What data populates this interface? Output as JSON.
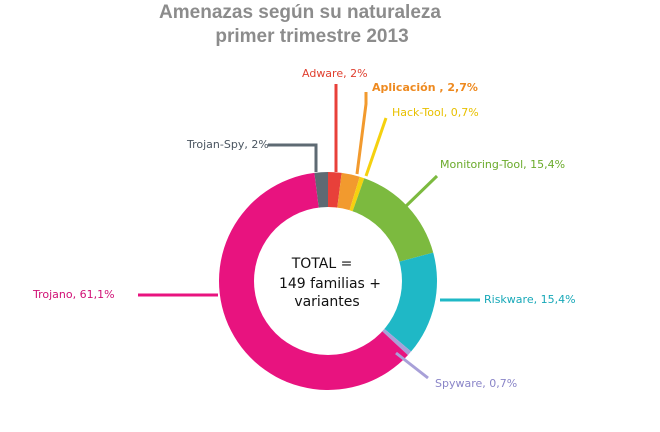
{
  "chart_data": {
    "type": "pie",
    "title": [
      "Amenazas según su naturaleza",
      "primer trimestre 2013"
    ],
    "center_text": [
      "TOTAL =",
      "149 familias +",
      "variantes"
    ],
    "slices": [
      {
        "label": "Adware, 2%",
        "value": 2.0,
        "color": "#e8403a",
        "label_color": "#e04030"
      },
      {
        "label": "Aplicación , 2,7%",
        "value": 2.7,
        "color": "#f29a2e",
        "label_color": "#ee8a20"
      },
      {
        "label": "Hack-Tool, 0,7%",
        "value": 0.7,
        "color": "#f5d10f",
        "label_color": "#e8c000"
      },
      {
        "label": "Monitoring-Tool, 15,4%",
        "value": 15.4,
        "color": "#7cba3f",
        "label_color": "#6aaa2a"
      },
      {
        "label": "Riskware, 15,4%",
        "value": 15.4,
        "color": "#1fb8c6",
        "label_color": "#17a8b8"
      },
      {
        "label": "Spyware, 0,7%",
        "value": 0.7,
        "color": "#a8a0d8",
        "label_color": "#8a85c8"
      },
      {
        "label": "Trojano, 61,1%",
        "value": 61.1,
        "color": "#e8137f",
        "label_color": "#d01075"
      },
      {
        "label": "Trojan-Spy, 2%",
        "value": 2.0,
        "color": "#5e6a73",
        "label_color": "#4a5560"
      }
    ]
  }
}
